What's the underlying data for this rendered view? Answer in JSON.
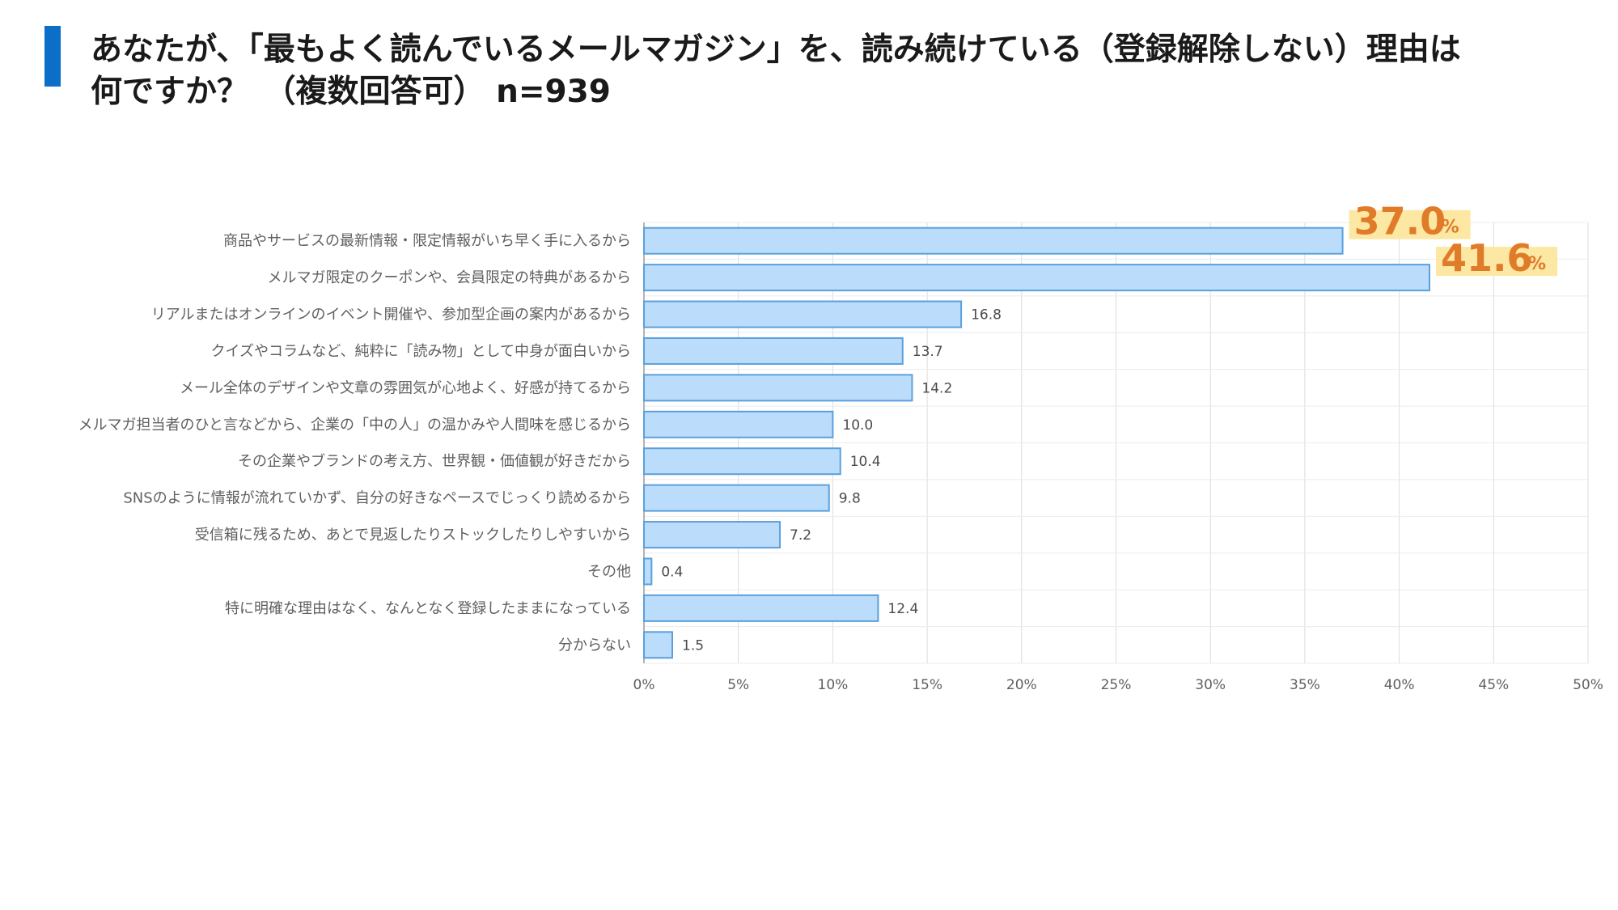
{
  "title": {
    "line1": "あなたが、「最もよく読んでいるメールマガジン」を、読み続けている（登録解除しない）理由は",
    "line2": "何ですか？　（複数回答可） n=939"
  },
  "colors": {
    "accent": "#0b6fc7",
    "bar_fill": "#bcdcfb",
    "bar_stroke": "#5aa0dc",
    "highlight_text": "#e07b2a",
    "highlight_bg": "#fce7a3",
    "grid": "#dcdcdc"
  },
  "chart_data": {
    "type": "bar",
    "orientation": "horizontal",
    "categories": [
      "商品やサービスの最新情報・限定情報がいち早く手に入るから",
      "メルマガ限定のクーポンや、会員限定の特典があるから",
      "リアルまたはオンラインのイベント開催や、参加型企画の案内があるから",
      "クイズやコラムなど、純粋に「読み物」として中身が面白いから",
      "メール全体のデザインや文章の雰囲気が心地よく、好感が持てるから",
      "メルマガ担当者のひと言などから、企業の「中の人」の温かみや人間味を感じるから",
      "その企業やブランドの考え方、世界観・価値観が好きだから",
      "SNSのように情報が流れていかず、自分の好きなペースでじっくり読めるから",
      "受信箱に残るため、あとで見返したりストックしたりしやすいから",
      "その他",
      "特に明確な理由はなく、なんとなく登録したままになっている",
      "分からない"
    ],
    "values": [
      37.0,
      41.6,
      16.8,
      13.7,
      14.2,
      10.0,
      10.4,
      9.8,
      7.2,
      0.4,
      12.4,
      1.5
    ],
    "data_labels": [
      "37.0",
      "41.6",
      "16.8",
      "13.7",
      "14.2",
      "10.0",
      "10.4",
      "9.8",
      "7.2",
      "0.4",
      "12.4",
      "1.5"
    ],
    "highlighted_indices": [
      0,
      1
    ],
    "highlight_unit": "%",
    "xlim": [
      0,
      50
    ],
    "x_ticks": [
      0,
      5,
      10,
      15,
      20,
      25,
      30,
      35,
      40,
      45,
      50
    ],
    "x_tick_labels": [
      "0%",
      "5%",
      "10%",
      "15%",
      "20%",
      "25%",
      "30%",
      "35%",
      "40%",
      "45%",
      "50%"
    ],
    "grid": true,
    "legend": "none"
  }
}
